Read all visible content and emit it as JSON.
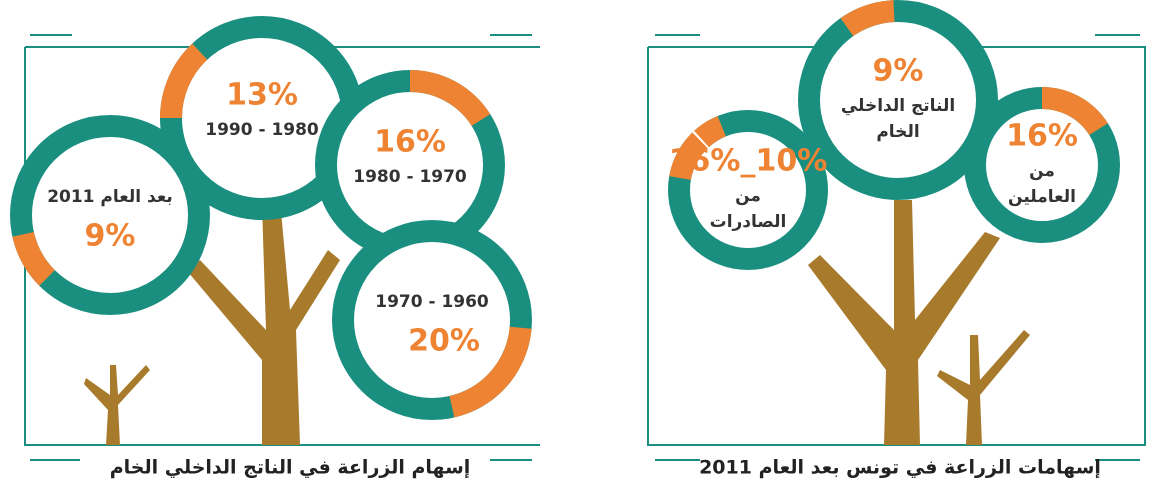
{
  "panels": [
    {
      "title": "إسهام الزراعة في الناتج الداخلي الخام",
      "rings": [
        {
          "label": "بعد العام 2011",
          "value": 9,
          "value_label": "9%"
        },
        {
          "label": "1990 - 1980",
          "value": 13,
          "value_label": "13%"
        },
        {
          "label": "1980 - 1970",
          "value": 16,
          "value_label": "16%"
        },
        {
          "label": "1970 - 1960",
          "value": 20,
          "value_label": "20%"
        }
      ]
    },
    {
      "title": "إسهامات الزراعة في تونس بعد العام 2011",
      "rings": [
        {
          "label_lines": [
            "الناتج الداخلي",
            "الخام"
          ],
          "value": 9,
          "value_label": "9%"
        },
        {
          "label_lines": [
            "من",
            "العاملين"
          ],
          "value": 16,
          "value_label": "16%"
        },
        {
          "label_lines": [
            "من",
            "الصادرات"
          ],
          "values": [
            10,
            16
          ],
          "value_label": "16%_10%"
        }
      ]
    }
  ]
}
